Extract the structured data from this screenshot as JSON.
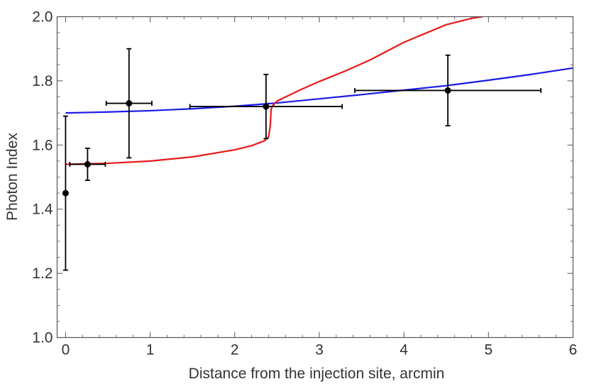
{
  "chart_data": {
    "type": "scatter",
    "title": "",
    "xlabel": "Distance from the injection site, arcmin",
    "ylabel": "Photon Index",
    "xlim": [
      -0.1,
      6.0
    ],
    "ylim": [
      1.0,
      2.0
    ],
    "x_ticks": [
      0,
      1,
      2,
      3,
      4,
      5,
      6
    ],
    "y_ticks": [
      1.0,
      1.2,
      1.4,
      1.6,
      1.8,
      2.0
    ],
    "x_tick_labels": [
      "0",
      "1",
      "2",
      "3",
      "4",
      "5",
      "6"
    ],
    "y_tick_labels": [
      "1.0",
      "1.2",
      "1.4",
      "1.6",
      "1.8",
      "2.0"
    ],
    "grid": false,
    "points": [
      {
        "x": 0.0,
        "y": 1.45,
        "x_low": 0.0,
        "x_high": 0.0,
        "y_low": 1.21,
        "y_high": 1.69
      },
      {
        "x": 0.26,
        "y": 1.54,
        "x_low": 0.05,
        "x_high": 0.47,
        "y_low": 1.49,
        "y_high": 1.59
      },
      {
        "x": 0.75,
        "y": 1.73,
        "x_low": 0.48,
        "x_high": 1.02,
        "y_low": 1.56,
        "y_high": 1.9
      },
      {
        "x": 2.37,
        "y": 1.72,
        "x_low": 1.47,
        "x_high": 3.27,
        "y_low": 1.62,
        "y_high": 1.82
      },
      {
        "x": 4.52,
        "y": 1.77,
        "x_low": 3.42,
        "x_high": 5.62,
        "y_low": 1.66,
        "y_high": 1.88
      }
    ],
    "series": [
      {
        "name": "model-blue",
        "color": "#1a1ae6",
        "x": [
          0.0,
          0.5,
          1.0,
          1.5,
          2.0,
          2.5,
          3.0,
          3.5,
          4.0,
          4.5,
          5.0,
          5.5,
          6.0
        ],
        "y": [
          1.7,
          1.703,
          1.707,
          1.713,
          1.721,
          1.731,
          1.744,
          1.757,
          1.771,
          1.785,
          1.802,
          1.82,
          1.84
        ]
      },
      {
        "name": "model-red",
        "color": "#e61a1a",
        "x": [
          0.0,
          0.5,
          1.0,
          1.5,
          2.0,
          2.2,
          2.35,
          2.4,
          2.42,
          2.43,
          2.44,
          2.5,
          2.8,
          3.0,
          3.3,
          3.6,
          4.0,
          4.5,
          4.8,
          4.93
        ],
        "y": [
          1.54,
          1.543,
          1.55,
          1.563,
          1.585,
          1.598,
          1.613,
          1.625,
          1.66,
          1.71,
          1.72,
          1.737,
          1.775,
          1.798,
          1.83,
          1.865,
          1.92,
          1.975,
          1.995,
          2.0
        ]
      }
    ]
  }
}
